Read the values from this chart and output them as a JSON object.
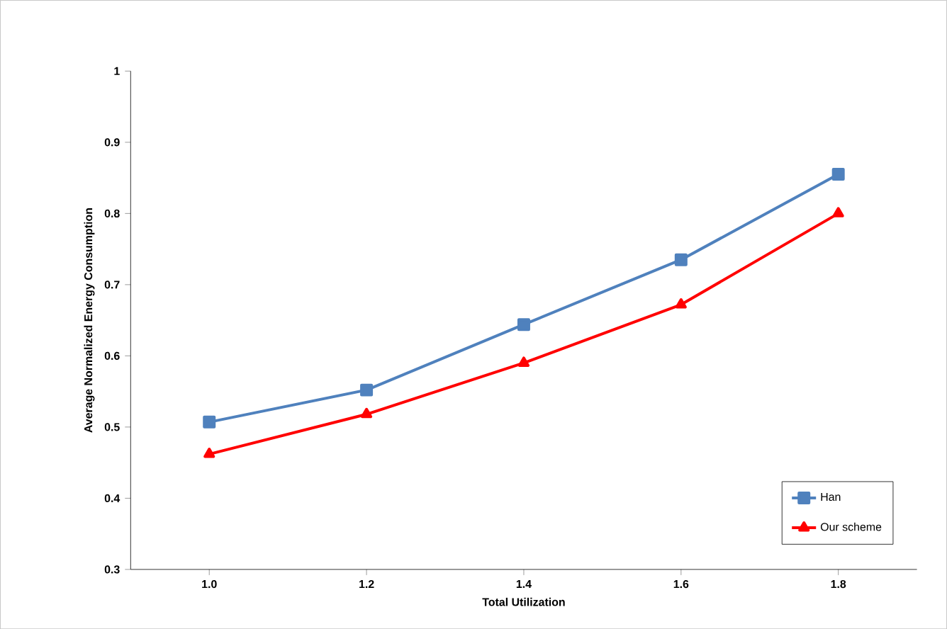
{
  "chart_data": {
    "type": "line",
    "xlabel": "Total Utilization",
    "ylabel": "Average Normalized Energy Consumption",
    "categories": [
      "1.0",
      "1.2",
      "1.4",
      "1.6",
      "1.8"
    ],
    "series": [
      {
        "name": "Han",
        "color": "#4f81bd",
        "marker": "square",
        "values": [
          0.507,
          0.552,
          0.644,
          0.735,
          0.855
        ]
      },
      {
        "name": "Our scheme",
        "color": "#ff0000",
        "marker": "triangle",
        "values": [
          0.462,
          0.518,
          0.59,
          0.672,
          0.8
        ]
      }
    ],
    "ylim": [
      0.3,
      1
    ],
    "yticks": [
      0.3,
      0.4,
      0.5,
      0.6,
      0.7,
      0.8,
      0.9,
      1
    ],
    "grid": false,
    "legend": "bottom right"
  }
}
